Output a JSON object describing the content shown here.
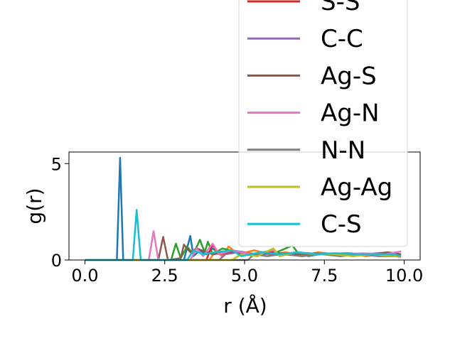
{
  "chart_data": {
    "type": "line",
    "xlabel": "r (Å)",
    "ylabel": "g(r)",
    "xlim": [
      -0.5,
      10.5
    ],
    "ylim": [
      0,
      5.6
    ],
    "xticks": [
      0.0,
      2.5,
      5.0,
      7.5,
      10.0
    ],
    "xtick_labels": [
      "0.0",
      "2.5",
      "5.0",
      "7.5",
      "10.0"
    ],
    "yticks": [
      0,
      5
    ],
    "ytick_labels": [
      "0",
      "5"
    ],
    "grid": false,
    "legend_position": "top-right",
    "series": [
      {
        "name": "",
        "color": "#1f77b4",
        "points": [
          [
            0,
            0
          ],
          [
            1.0,
            0
          ],
          [
            1.1,
            5.3
          ],
          [
            1.2,
            0
          ],
          [
            3.1,
            0
          ],
          [
            3.3,
            1.25
          ],
          [
            3.4,
            0.2
          ],
          [
            3.6,
            0.5
          ],
          [
            3.8,
            0.3
          ],
          [
            4.0,
            0.6
          ],
          [
            4.3,
            0.2
          ],
          [
            4.6,
            0.5
          ],
          [
            5.0,
            0.4
          ],
          [
            5.4,
            0.2
          ],
          [
            5.8,
            0.5
          ],
          [
            6.2,
            0.3
          ],
          [
            6.6,
            0.4
          ],
          [
            7.0,
            0.2
          ],
          [
            7.5,
            0.35
          ],
          [
            8.0,
            0.2
          ],
          [
            8.5,
            0.3
          ],
          [
            9.0,
            0.25
          ],
          [
            9.5,
            0.2
          ],
          [
            9.9,
            0.2
          ]
        ]
      },
      {
        "name": "",
        "color": "#ff7f0e",
        "points": [
          [
            0,
            0
          ],
          [
            3.9,
            0
          ],
          [
            4.1,
            0.5
          ],
          [
            4.3,
            0.2
          ],
          [
            4.5,
            0.7
          ],
          [
            4.8,
            0.3
          ],
          [
            5.3,
            0.5
          ],
          [
            5.8,
            0.3
          ],
          [
            6.3,
            0.4
          ],
          [
            6.8,
            0.2
          ],
          [
            7.3,
            0.4
          ],
          [
            7.8,
            0.3
          ],
          [
            8.3,
            0.35
          ],
          [
            8.8,
            0.2
          ],
          [
            9.3,
            0.3
          ],
          [
            9.9,
            0.15
          ]
        ]
      },
      {
        "name": "",
        "color": "#2ca02c",
        "points": [
          [
            0,
            0
          ],
          [
            2.7,
            0
          ],
          [
            2.85,
            0.85
          ],
          [
            3.0,
            0.1
          ],
          [
            3.2,
            0.7
          ],
          [
            3.4,
            0.3
          ],
          [
            3.6,
            1.05
          ],
          [
            3.75,
            0.4
          ],
          [
            3.85,
            0.95
          ],
          [
            4.0,
            0.3
          ],
          [
            4.3,
            0.6
          ],
          [
            4.8,
            0.4
          ],
          [
            5.3,
            0.3
          ],
          [
            6.0,
            0.4
          ],
          [
            6.5,
            0.75
          ],
          [
            6.7,
            0.3
          ],
          [
            7.2,
            0.35
          ],
          [
            7.8,
            0.3
          ],
          [
            8.4,
            0.25
          ],
          [
            9.0,
            0.3
          ],
          [
            9.6,
            0.2
          ],
          [
            9.9,
            0.2
          ]
        ]
      },
      {
        "name": "S-S",
        "color": "#d62728",
        "points": [
          [
            0,
            0
          ],
          [
            3.8,
            0
          ],
          [
            4.0,
            0.8
          ],
          [
            4.2,
            0.3
          ],
          [
            4.6,
            0.4
          ],
          [
            5.2,
            0.3
          ],
          [
            5.8,
            0.4
          ],
          [
            6.4,
            0.3
          ],
          [
            7.0,
            0.35
          ],
          [
            7.6,
            0.3
          ],
          [
            8.2,
            0.35
          ],
          [
            8.8,
            0.3
          ],
          [
            9.4,
            0.3
          ],
          [
            9.9,
            0.25
          ]
        ]
      },
      {
        "name": "C-C",
        "color": "#9467bd",
        "points": [
          [
            0,
            0
          ],
          [
            4.2,
            0
          ],
          [
            4.4,
            0.3
          ],
          [
            4.8,
            0.4
          ],
          [
            5.5,
            0.3
          ],
          [
            6.2,
            0.35
          ],
          [
            7.0,
            0.3
          ],
          [
            7.8,
            0.35
          ],
          [
            8.6,
            0.3
          ],
          [
            9.3,
            0.35
          ],
          [
            9.9,
            0.3
          ]
        ]
      },
      {
        "name": "Ag-S",
        "color": "#8c564b",
        "points": [
          [
            0,
            0
          ],
          [
            2.3,
            0
          ],
          [
            2.45,
            1.2
          ],
          [
            2.6,
            0
          ],
          [
            3.0,
            0.1
          ],
          [
            3.1,
            0.8
          ],
          [
            3.3,
            0.4
          ],
          [
            3.5,
            0.6
          ],
          [
            4.0,
            0.3
          ],
          [
            4.6,
            0.4
          ],
          [
            5.3,
            0.3
          ],
          [
            6.0,
            0.35
          ],
          [
            6.7,
            0.3
          ],
          [
            7.4,
            0.3
          ],
          [
            8.1,
            0.35
          ],
          [
            8.8,
            0.3
          ],
          [
            9.5,
            0.4
          ],
          [
            9.9,
            0.3
          ]
        ]
      },
      {
        "name": "Ag-N",
        "color": "#e377c2",
        "points": [
          [
            0,
            0
          ],
          [
            2.0,
            0
          ],
          [
            2.15,
            1.5
          ],
          [
            2.3,
            0
          ],
          [
            3.3,
            0
          ],
          [
            3.5,
            0.6
          ],
          [
            3.7,
            0.2
          ],
          [
            4.0,
            0.85
          ],
          [
            4.2,
            0.3
          ],
          [
            4.6,
            0.5
          ],
          [
            5.2,
            0.3
          ],
          [
            5.9,
            0.5
          ],
          [
            6.1,
            0.2
          ],
          [
            6.6,
            0.4
          ],
          [
            7.3,
            0.3
          ],
          [
            8.0,
            0.3
          ],
          [
            8.7,
            0.35
          ],
          [
            9.4,
            0.3
          ],
          [
            9.9,
            0.45
          ]
        ]
      },
      {
        "name": "N-N",
        "color": "#7f7f7f",
        "points": [
          [
            0,
            0
          ],
          [
            5.1,
            0
          ],
          [
            5.3,
            0.3
          ],
          [
            5.7,
            0.2
          ],
          [
            6.2,
            0.3
          ],
          [
            6.8,
            0.2
          ],
          [
            7.4,
            0.3
          ],
          [
            8.0,
            0.2
          ],
          [
            8.6,
            0.3
          ],
          [
            9.2,
            0.2
          ],
          [
            9.9,
            0.2
          ]
        ]
      },
      {
        "name": "Ag-Ag",
        "color": "#bcbd22",
        "points": [
          [
            0,
            0
          ],
          [
            4.6,
            0
          ],
          [
            4.9,
            0.3
          ],
          [
            5.4,
            0.2
          ],
          [
            5.9,
            0.6
          ],
          [
            6.1,
            0.2
          ],
          [
            6.6,
            0.4
          ],
          [
            7.2,
            0.3
          ],
          [
            7.8,
            0.3
          ],
          [
            8.4,
            0.2
          ],
          [
            9.0,
            0.3
          ],
          [
            9.6,
            0.2
          ],
          [
            9.9,
            0.2
          ]
        ]
      },
      {
        "name": "C-S",
        "color": "#17becf",
        "points": [
          [
            0,
            0
          ],
          [
            1.5,
            0
          ],
          [
            1.62,
            2.6
          ],
          [
            1.75,
            0
          ],
          [
            3.2,
            0
          ],
          [
            3.4,
            0.5
          ],
          [
            3.7,
            0.3
          ],
          [
            4.1,
            0.4
          ],
          [
            4.6,
            0.5
          ],
          [
            4.9,
            0.2
          ],
          [
            5.5,
            0.4
          ],
          [
            6.1,
            0.3
          ],
          [
            6.7,
            0.4
          ],
          [
            7.3,
            0.3
          ],
          [
            7.9,
            0.35
          ],
          [
            8.5,
            0.3
          ],
          [
            9.1,
            0.3
          ],
          [
            9.7,
            0.3
          ],
          [
            9.9,
            0.2
          ]
        ]
      }
    ]
  }
}
